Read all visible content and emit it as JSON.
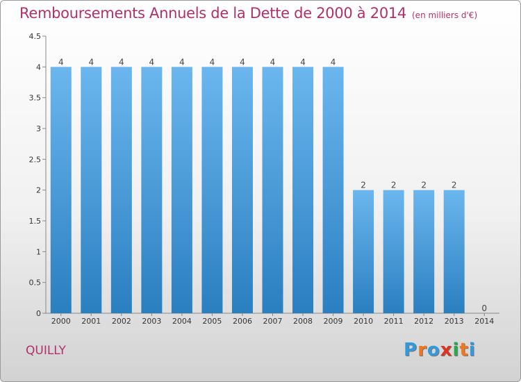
{
  "title": "Remboursements Annuels de la Dette de 2000 à 2014",
  "unit": "(en milliers d'€)",
  "commune": "QUILLY",
  "logo": {
    "letters": [
      "P",
      "r",
      "o",
      "x",
      "i",
      "t",
      "i"
    ],
    "colors": [
      "#3399dd",
      "#ee7722",
      "#3399dd",
      "#dd3322",
      "#2aa84a",
      "#ee7722",
      "#3399dd"
    ]
  },
  "colors": {
    "bar_light": "#6bb6ee",
    "bar_dark": "#2a7fc0",
    "accent": "#b0306a"
  },
  "chart_data": {
    "type": "bar",
    "categories": [
      "2000",
      "2001",
      "2002",
      "2003",
      "2004",
      "2005",
      "2006",
      "2007",
      "2008",
      "2009",
      "2010",
      "2011",
      "2012",
      "2013",
      "2014"
    ],
    "values": [
      4,
      4,
      4,
      4,
      4,
      4,
      4,
      4,
      4,
      4,
      2,
      2,
      2,
      2,
      0
    ],
    "data_labels": [
      "4",
      "4",
      "4",
      "4",
      "4",
      "4",
      "4",
      "4",
      "4",
      "4",
      "2",
      "2",
      "2",
      "2",
      "0"
    ],
    "yticks": [
      "0",
      "0.5",
      "1",
      "1.5",
      "2",
      "2.5",
      "3",
      "3.5",
      "4",
      "4.5"
    ],
    "ylim": [
      0,
      4.5
    ],
    "grid": false,
    "legend": "none"
  }
}
